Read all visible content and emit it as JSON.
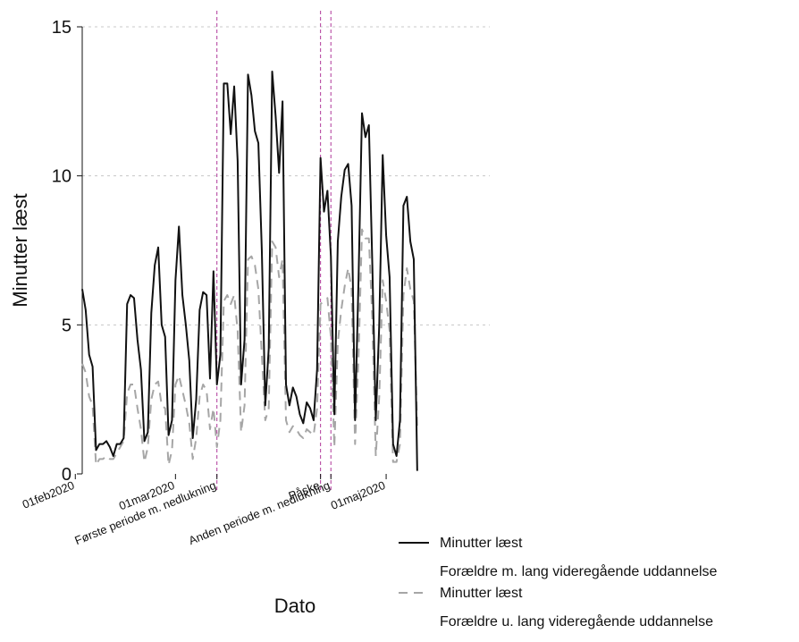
{
  "chart_data": {
    "type": "line",
    "title": "",
    "xlabel": "Dato",
    "ylabel": "Minutter læst",
    "ylim": [
      0,
      15
    ],
    "yticks": [
      0,
      5,
      10,
      15
    ],
    "grid": "horizontal dotted",
    "x_start": "2020-02-03",
    "x_end": "2020-05-31",
    "xticks": [
      {
        "date": "2020-02-01",
        "label": "01feb2020"
      },
      {
        "date": "2020-03-01",
        "label": "01mar2020"
      },
      {
        "date": "2020-03-13",
        "label": "Første periode m. nedlukning"
      },
      {
        "date": "2020-04-12",
        "label": "Påske"
      },
      {
        "date": "2020-04-15",
        "label": "Anden periode m. nedlukning"
      },
      {
        "date": "2020-05-01",
        "label": "01maj2020"
      }
    ],
    "vlines": [
      {
        "date": "2020-03-13",
        "color": "#b0389a"
      },
      {
        "date": "2020-04-12",
        "color": "#b0389a"
      },
      {
        "date": "2020-04-15",
        "color": "#b0389a"
      }
    ],
    "legend_position": "bottom-right",
    "series": [
      {
        "name": "Minutter læst",
        "subtitle": "Forældre m. lang videregående uddannelse",
        "color": "#111111",
        "dash": "",
        "values": [
          6.2,
          5.5,
          4.0,
          3.6,
          0.8,
          1.0,
          1.0,
          1.1,
          0.9,
          0.6,
          1.0,
          1.0,
          1.2,
          5.7,
          6.0,
          5.9,
          4.5,
          3.5,
          1.1,
          1.4,
          5.4,
          7.0,
          7.6,
          5.0,
          4.6,
          1.3,
          1.8,
          6.5,
          8.3,
          6.0,
          5.0,
          3.8,
          1.2,
          2.5,
          5.5,
          6.1,
          6.0,
          3.2,
          6.8,
          3.0,
          4.0,
          13.1,
          13.1,
          11.4,
          13.0,
          10.5,
          3.0,
          4.5,
          13.4,
          12.7,
          11.5,
          11.1,
          7.5,
          2.3,
          4.2,
          13.5,
          12.0,
          10.1,
          12.5,
          3.0,
          2.3,
          2.9,
          2.6,
          2.0,
          1.7,
          2.4,
          2.2,
          1.8,
          3.5,
          10.6,
          8.8,
          9.5,
          7.3,
          2.0,
          7.8,
          9.3,
          10.2,
          10.4,
          9.0,
          1.8,
          6.5,
          12.1,
          11.3,
          11.7,
          7.0,
          1.8,
          5.0,
          10.7,
          8.0,
          6.6,
          1.0,
          0.6,
          1.8,
          9.0,
          9.3,
          7.8,
          7.2,
          0.1
        ]
      },
      {
        "name": "Minutter læst",
        "subtitle": "Forældre u. lang videregående uddannelse",
        "color": "#a6a6a6",
        "dash": "10,7",
        "values": [
          3.7,
          3.4,
          2.6,
          2.3,
          0.3,
          0.5,
          0.5,
          0.6,
          0.5,
          0.5,
          0.7,
          0.9,
          1.1,
          2.7,
          3.0,
          3.0,
          2.2,
          1.5,
          0.4,
          0.9,
          2.5,
          3.0,
          3.1,
          2.3,
          2.2,
          0.3,
          0.8,
          3.0,
          3.3,
          2.8,
          2.3,
          1.7,
          0.5,
          1.2,
          2.6,
          3.0,
          2.8,
          1.5,
          2.2,
          0.9,
          1.8,
          5.8,
          6.0,
          5.7,
          6.0,
          4.8,
          1.4,
          2.3,
          7.2,
          7.3,
          7.0,
          6.2,
          4.0,
          1.8,
          2.2,
          7.8,
          7.6,
          6.6,
          7.2,
          1.8,
          1.4,
          1.6,
          1.5,
          1.3,
          1.2,
          1.5,
          1.4,
          1.3,
          2.2,
          5.7,
          5.8,
          5.9,
          4.6,
          0.9,
          4.4,
          5.5,
          6.3,
          6.9,
          6.2,
          1.0,
          3.9,
          8.2,
          7.9,
          7.9,
          5.2,
          0.6,
          2.6,
          6.5,
          5.8,
          4.8,
          0.4,
          0.4,
          1.0,
          6.0,
          6.9,
          6.2,
          5.8,
          1.6
        ]
      }
    ]
  }
}
